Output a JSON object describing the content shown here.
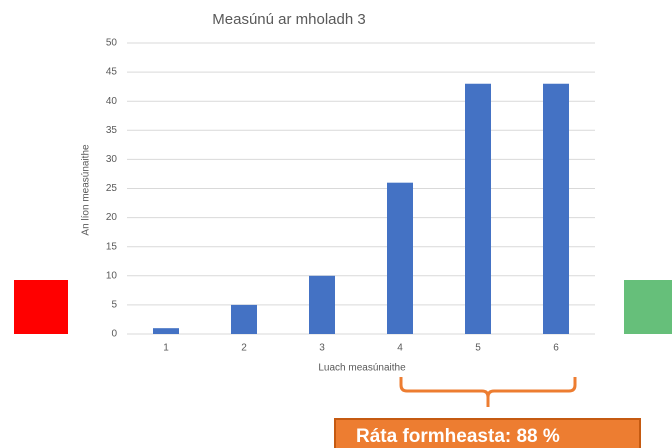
{
  "chart_data": {
    "type": "bar",
    "title": "Measúnú ar mholadh 3",
    "x_label": "Luach measúnaithe",
    "y_label": "An líon measúnaithe",
    "categories": [
      "1",
      "2",
      "3",
      "4",
      "5",
      "6"
    ],
    "values": [
      1,
      5,
      10,
      26,
      43,
      43
    ],
    "color": "#4472c4",
    "ylim": [
      0,
      50
    ],
    "yticks": [
      0,
      5,
      10,
      15,
      20,
      25,
      30,
      35,
      40,
      45,
      50
    ],
    "grid": true,
    "annotation": "Ráta formheasta: 88 %"
  }
}
